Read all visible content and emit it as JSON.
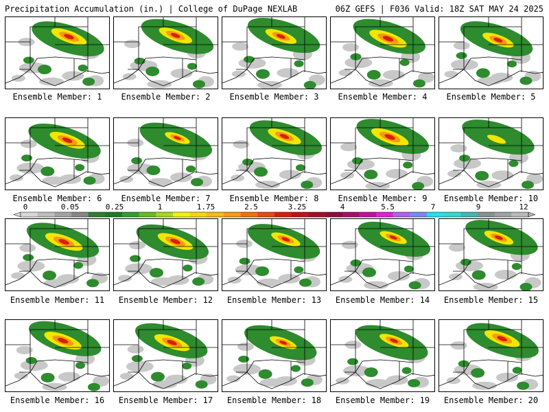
{
  "header": {
    "left_title": "Precipitation Accumulation (in.) | College of DuPage NEXLAB",
    "right_title": "06Z GEFS | F036 Valid: 18Z SAT MAY 24 2025"
  },
  "legend": {
    "tick_labels": [
      "0",
      "0.05",
      "0.25",
      "1",
      "1.75",
      "2.5",
      "3.25",
      "4",
      "5.5",
      "7",
      "9",
      "12"
    ],
    "colors": [
      "#d8d8d8",
      "#bdbdbd",
      "#a2a2a2",
      "#878787",
      "#2e7d32",
      "#1b7a22",
      "#2f9e2f",
      "#66bb22",
      "#a6d81f",
      "#f2f20a",
      "#f5d60f",
      "#f8ba14",
      "#f79a12",
      "#f0700e",
      "#e64a0c",
      "#d91f0b",
      "#c0101b",
      "#a01023",
      "#8a0f3a",
      "#a0106a",
      "#c010a0",
      "#e020d8",
      "#b05ef0",
      "#7a88f5",
      "#20e0f5",
      "#30d8d0",
      "#40b8b0",
      "#889090",
      "#a0a0a0",
      "#b8b8b8"
    ]
  },
  "members": [
    {
      "label": "Ensemble Member: 1",
      "intensity": 0.85
    },
    {
      "label": "Ensemble Member: 2",
      "intensity": 0.8
    },
    {
      "label": "Ensemble Member: 3",
      "intensity": 0.75
    },
    {
      "label": "Ensemble Member: 4",
      "intensity": 0.9
    },
    {
      "label": "Ensemble Member: 5",
      "intensity": 0.75
    },
    {
      "label": "Ensemble Member: 6",
      "intensity": 0.85
    },
    {
      "label": "Ensemble Member: 7",
      "intensity": 0.6
    },
    {
      "label": "Ensemble Member: 8",
      "intensity": 0.8
    },
    {
      "label": "Ensemble Member: 9",
      "intensity": 0.9
    },
    {
      "label": "Ensemble Member: 10",
      "intensity": 0.45
    },
    {
      "label": "Ensemble Member: 11",
      "intensity": 0.9
    },
    {
      "label": "Ensemble Member: 12",
      "intensity": 0.85
    },
    {
      "label": "Ensemble Member: 13",
      "intensity": 0.7
    },
    {
      "label": "Ensemble Member: 14",
      "intensity": 0.65
    },
    {
      "label": "Ensemble Member: 15",
      "intensity": 0.7
    },
    {
      "label": "Ensemble Member: 16",
      "intensity": 0.9
    },
    {
      "label": "Ensemble Member: 17",
      "intensity": 0.85
    },
    {
      "label": "Ensemble Member: 18",
      "intensity": 0.65
    },
    {
      "label": "Ensemble Member: 19",
      "intensity": 0.7
    },
    {
      "label": "Ensemble Member: 20",
      "intensity": 0.85
    }
  ]
}
